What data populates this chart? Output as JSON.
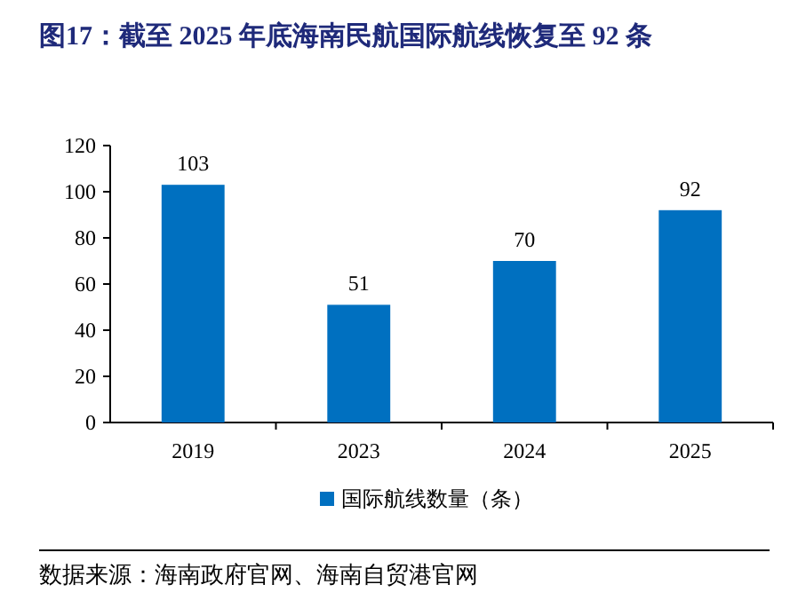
{
  "chart_data": {
    "type": "bar",
    "title": "图17：截至 2025 年底海南民航国际航线恢复至 92 条",
    "categories": [
      "2019",
      "2023",
      "2024",
      "2025"
    ],
    "series": [
      {
        "name": "国际航线数量（条）",
        "color": "#0070c0",
        "values": [
          103,
          51,
          70,
          92
        ]
      }
    ],
    "ylim": [
      0,
      120
    ],
    "yticks": [
      0,
      20,
      40,
      60,
      80,
      100,
      120
    ],
    "data_labels": true,
    "legend": "bottom",
    "grid": false,
    "annotations": [
      "数据来源：海南政府官网、海南自贸港官网"
    ]
  }
}
